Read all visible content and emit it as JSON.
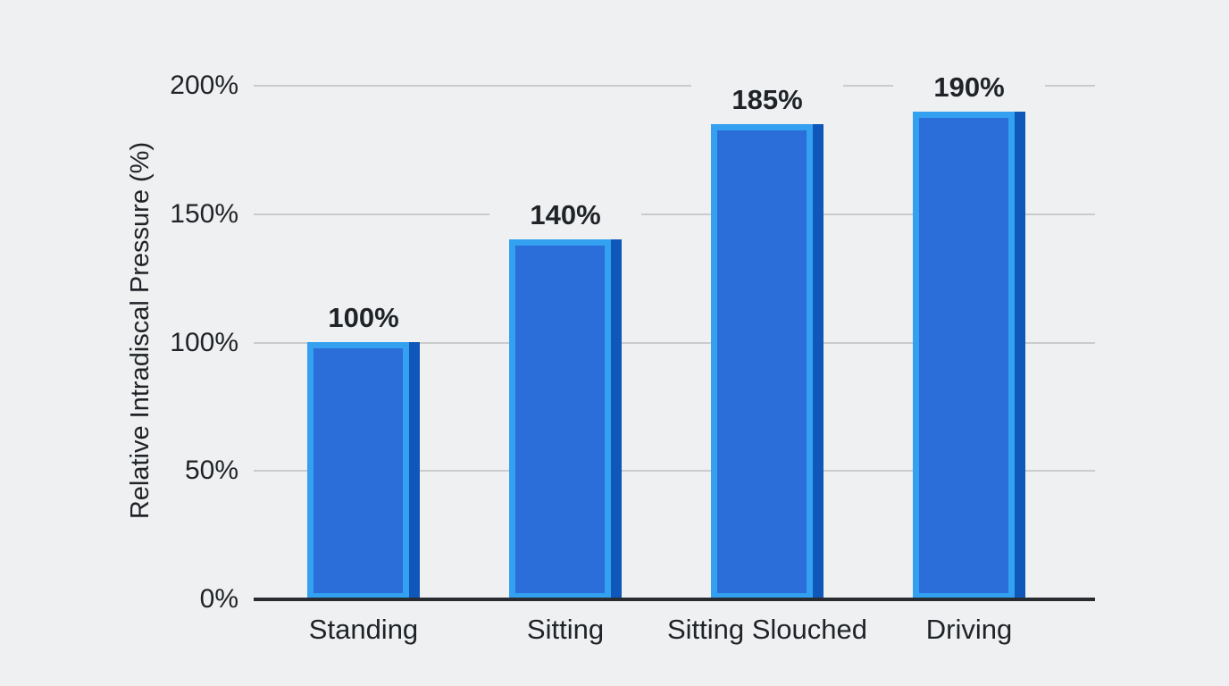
{
  "chart_data": {
    "type": "bar",
    "title": "",
    "xlabel": "",
    "ylabel": "Relative Intradiscal Pressure (%)",
    "categories": [
      "Standing",
      "Sitting",
      "Sitting Slouched",
      "Driving"
    ],
    "values": [
      100,
      140,
      185,
      190
    ],
    "value_labels": [
      "100%",
      "140%",
      "185%",
      "190%"
    ],
    "yticks": [
      {
        "value": 0,
        "label": "0%"
      },
      {
        "value": 50,
        "label": "50%"
      },
      {
        "value": 100,
        "label": "100%"
      },
      {
        "value": 150,
        "label": "150%"
      },
      {
        "value": 200,
        "label": "200%"
      }
    ],
    "ylim": [
      0,
      200
    ],
    "grid": true,
    "legend": false,
    "colors": {
      "background": "#eef0f1",
      "bar_fill": "#2b6dd9",
      "bar_highlight": "#33a0f0",
      "bar_shadow": "#0f57b8",
      "gridline": "#c9cbcd",
      "axis": "#282c30",
      "text": "#1f2327"
    }
  }
}
